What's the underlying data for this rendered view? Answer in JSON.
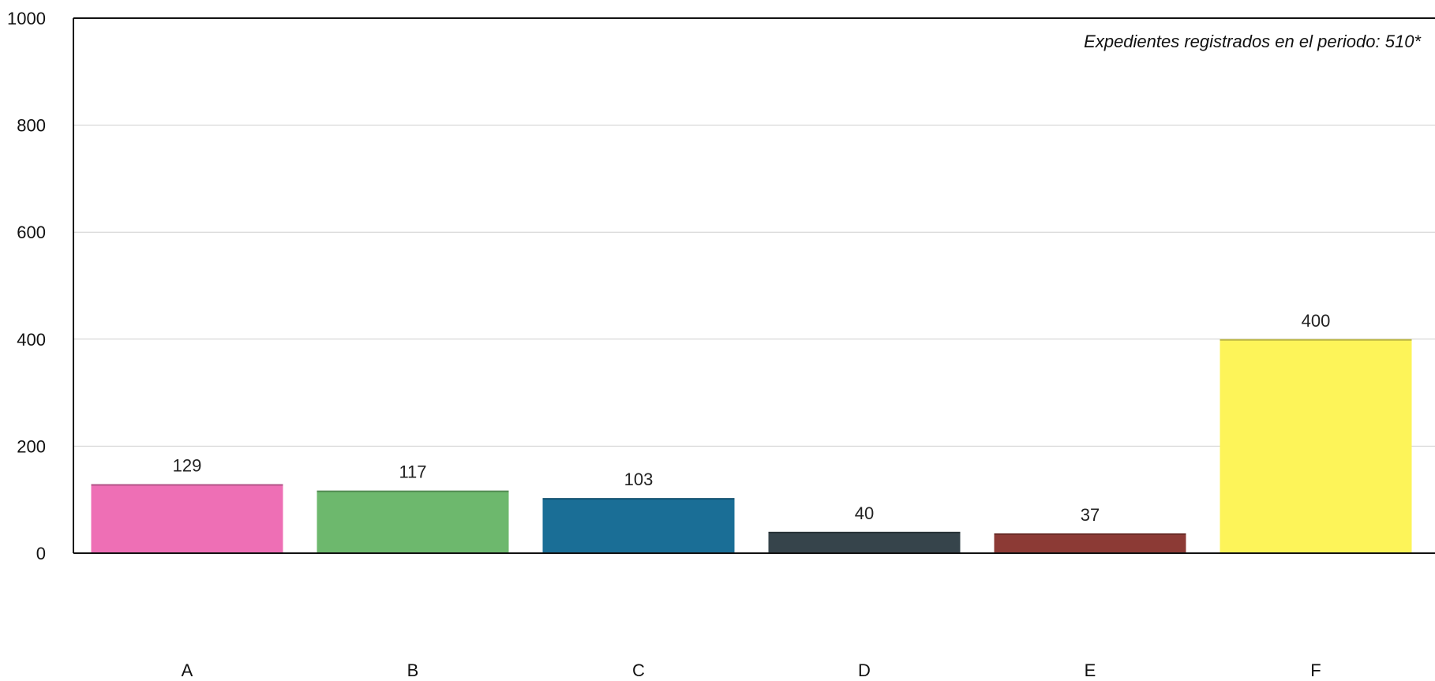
{
  "chart_data": {
    "type": "bar",
    "categories": [
      "A",
      "B",
      "C",
      "D",
      "E",
      "F"
    ],
    "values": [
      129,
      117,
      103,
      40,
      37,
      400
    ],
    "data_labels": [
      "129",
      "117",
      "103",
      "40",
      "37",
      "400"
    ],
    "colors": [
      "#ee6fb5",
      "#6db86d",
      "#1a6e96",
      "#36444b",
      "#8c3a35",
      "#fdf459"
    ],
    "ylim": [
      0,
      1000
    ],
    "yticks": [
      0,
      200,
      400,
      600,
      800,
      1000
    ],
    "ytick_labels": [
      "0",
      "200",
      "400",
      "600",
      "800",
      "1000"
    ],
    "title": "",
    "xlabel": "",
    "ylabel": "",
    "grid": true,
    "annotation": "Expedientes registrados en el periodo:  510*"
  }
}
